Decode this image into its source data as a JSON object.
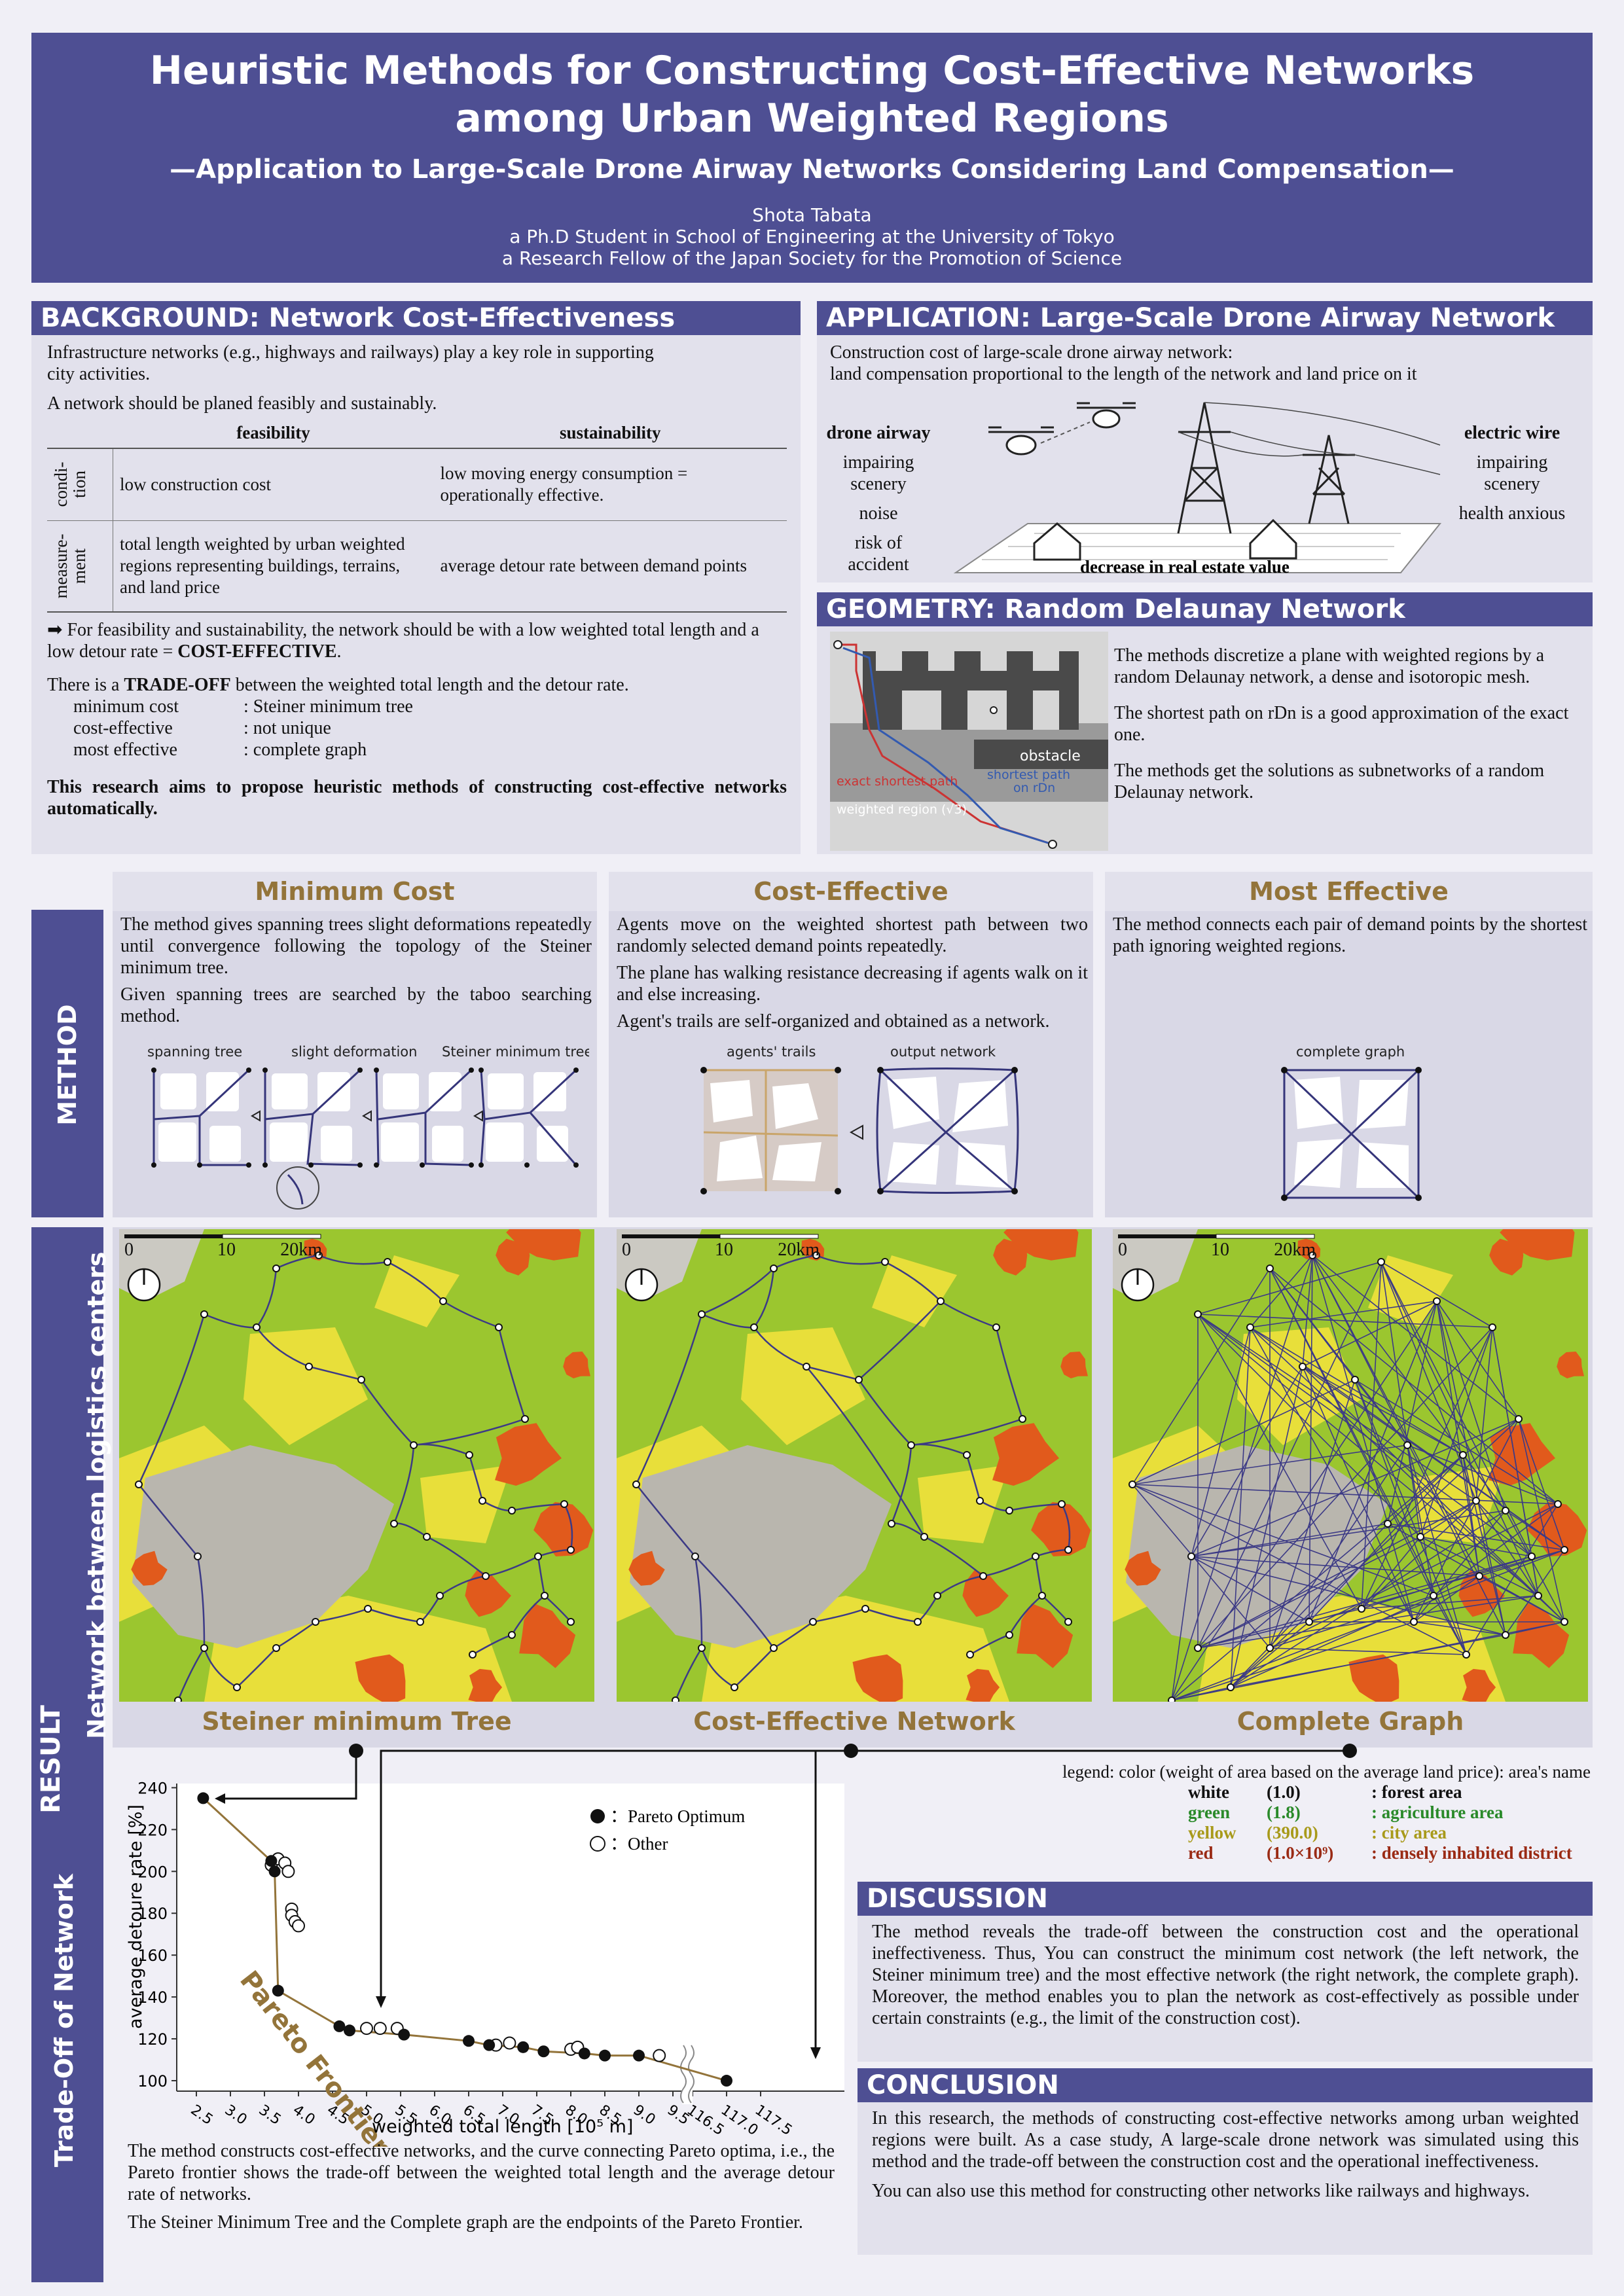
{
  "header": {
    "title_line1": "Heuristic Methods for Constructing Cost-Effective Networks",
    "title_line2": "among Urban Weighted Regions",
    "subtitle": "—Application to Large-Scale Drone Airway Networks Considering Land Compensation—",
    "author": "Shota Tabata",
    "affil1": "a Ph.D Student in School of Engineering at the University of Tokyo",
    "affil2": "a Research Fellow of the Japan Society for the Promotion of Science"
  },
  "background": {
    "heading": "BACKGROUND: Network Cost-Effectiveness",
    "p1": "Infrastructure networks (e.g., highways and railways) play a key role in supporting city activities.",
    "p2": "A network should be planed feasibly and sustainably.",
    "col_feasibility": "feasibility",
    "col_sustainability": "sustainability",
    "row1_label": "condi- tion",
    "row1_feas": "low construction cost",
    "row1_sust": "low moving energy consumption = operationally effective.",
    "row2_label": "measure- ment",
    "row2_feas": "total length weighted by urban weighted regions representing buildings, terrains, and land price",
    "row2_sust": "average detour rate between demand points",
    "arrow_text_a": "For feasibility and sustainability, the network should be with a low weighted total length and a low detour rate = ",
    "arrow_text_b": "COST-EFFECTIVE",
    "arrow_text_c": ".",
    "tradeoff_a": "There is a ",
    "tradeoff_b": "TRADE-OFF",
    "tradeoff_c": " between the weighted total length and the detour rate.",
    "list": [
      {
        "k": "minimum cost",
        "v": ": Steiner minimum tree"
      },
      {
        "k": "cost-effective",
        "v": ": not unique"
      },
      {
        "k": "most effective",
        "v": ": complete graph"
      }
    ],
    "aim": "This research aims to propose heuristic methods of constructing cost-effective networks automatically."
  },
  "application": {
    "heading": "APPLICATION: Large-Scale Drone Airway Network",
    "desc1": "Construction cost of large-scale drone airway network:",
    "desc2": "land compensation proportional to the length of the network and land price on it",
    "drone_title": "drone airway",
    "drone_items": [
      "impairing scenery",
      "noise",
      "risk of accident"
    ],
    "wire_title": "electric wire",
    "wire_items": [
      "impairing scenery",
      "health anxious"
    ],
    "decrease": "decrease in real estate value"
  },
  "geometry": {
    "heading": "GEOMETRY: Random Delaunay Network",
    "p1": "The methods discretize a plane with weighted regions by a random Delaunay network, a dense and isotoropic mesh.",
    "p2": "The shortest path on rDn is a good approximation of the exact one.",
    "p3": "The methods get the solutions as subnetworks of a random Delaunay network.",
    "img_obstacle": "obstacle",
    "img_shortest1": "shortest path",
    "img_shortest2": "on rDn",
    "img_exact": "exact shortest path",
    "img_weighted": "weighted region (√3)"
  },
  "method": {
    "side_label": "METHOD",
    "cols": [
      {
        "title": "Minimum Cost",
        "p1": "The method gives spanning trees slight deformations repeatedly until convergence following the topology of the Steiner minimum tree.",
        "p2": "Given spanning trees are searched by the taboo searching method.",
        "fig_labels": [
          "spanning tree",
          "slight deformation",
          "Steiner minimum tree"
        ]
      },
      {
        "title": "Cost-Effective",
        "p1": "Agents move on the weighted shortest path between two randomly selected demand points repeatedly.",
        "p2": "The plane has walking resistance decreasing if agents walk on it and else increasing.",
        "p3": "Agent's trails are self-organized and obtained as a network.",
        "fig_labels": [
          "agents' trails",
          "output network"
        ]
      },
      {
        "title": "Most Effective",
        "p1": "The method connects each pair of demand points by the shortest path ignoring weighted regions.",
        "fig_labels": [
          "complete graph"
        ]
      }
    ]
  },
  "result": {
    "side_label": "RESULT",
    "network_label": "Network between logistics centers",
    "tradeoff_label": "Trade-Off of Network",
    "scale": [
      "0",
      "10",
      "20km"
    ],
    "map_titles": [
      "Steiner minimum Tree",
      "Cost-Effective Network",
      "Complete Graph"
    ],
    "legend_title": "legend: color (weight of area based on the average land price): area's name",
    "legend": [
      {
        "name": "white",
        "w": "(1.0)",
        "area": ": forest area",
        "color": "#111111"
      },
      {
        "name": "green",
        "w": "(1.8)",
        "area": ": agriculture area",
        "color": "#2a8a2a"
      },
      {
        "name": "yellow",
        "w": "(390.0)",
        "area": ": city area",
        "color": "#a89a1a"
      },
      {
        "name": "red",
        "w": "(1.0×10⁹)",
        "area": ": densely inhabited district",
        "color": "#9a2a14"
      }
    ],
    "notes1": "The method constructs cost-effective networks, and the curve connecting Pareto optima, i.e., the Pareto frontier shows the trade-off between the weighted total length and the average detour rate of networks.",
    "notes2": "The Steiner Minimum Tree and the Complete graph are the endpoints of the Pareto Frontier."
  },
  "chart_data": {
    "type": "scatter",
    "xlabel": "weighted total length [10⁵ m]",
    "ylabel": "average detoure rate [%]",
    "x_ticks": [
      "2.5",
      "3.0",
      "3.5",
      "4.0",
      "4.5",
      "5.0",
      "5.5",
      "6.0",
      "6.5",
      "7.0",
      "7.5",
      "8.0",
      "8.5",
      "9.0",
      "9.5",
      "116.5",
      "117.0",
      "117.5"
    ],
    "y_ticks": [
      100,
      120,
      140,
      160,
      180,
      200,
      220,
      240
    ],
    "ylim": [
      95,
      242
    ],
    "annotation": "Pareto Frontier",
    "legend": {
      "pareto": "：Pareto Optimum",
      "other": "：Other"
    },
    "series": [
      {
        "name": "Pareto Optimum",
        "points": [
          [
            2.6,
            235
          ],
          [
            3.6,
            205
          ],
          [
            3.65,
            200
          ],
          [
            3.7,
            143
          ],
          [
            4.6,
            126
          ],
          [
            4.75,
            124
          ],
          [
            5.55,
            122
          ],
          [
            6.5,
            119
          ],
          [
            6.8,
            117
          ],
          [
            7.3,
            116
          ],
          [
            7.6,
            114
          ],
          [
            8.2,
            113
          ],
          [
            8.5,
            112
          ],
          [
            9.0,
            112
          ],
          [
            117.0,
            100
          ]
        ]
      },
      {
        "name": "Other",
        "points": [
          [
            3.6,
            203
          ],
          [
            3.7,
            206
          ],
          [
            3.8,
            204
          ],
          [
            3.85,
            200
          ],
          [
            3.9,
            182
          ],
          [
            3.9,
            179
          ],
          [
            3.95,
            176
          ],
          [
            4.0,
            174
          ],
          [
            5.0,
            125
          ],
          [
            5.2,
            125
          ],
          [
            5.45,
            125
          ],
          [
            6.9,
            117
          ],
          [
            7.1,
            118
          ],
          [
            8.0,
            115
          ],
          [
            8.1,
            116
          ],
          [
            9.3,
            112
          ]
        ]
      }
    ]
  },
  "discussion": {
    "heading": "DISCUSSION",
    "text": "The method reveals the trade-off between the construction cost and the operational ineffectiveness. Thus, You can construct the minimum cost network (the left network, the Steiner minimum tree) and the most effective network (the right network, the complete graph). Moreover, the method enables you to plan the network as cost-effectively as possible under certain constraints (e.g., the limit of the construction cost)."
  },
  "conclusion": {
    "heading": "CONCLUSION",
    "p1": "In this research, the methods of constructing cost-effective networks among urban weighted regions were built. As a case study, A large-scale drone network was simulated using this method and the trade-off between the construction cost and the operational ineffectiveness.",
    "p2": "You can also use this method for constructing other networks like railways and highways."
  },
  "colors": {
    "primary": "#4e4f93",
    "panel": "#e2e1ec",
    "gold": "#93743a",
    "bg": "#f0eff6"
  }
}
